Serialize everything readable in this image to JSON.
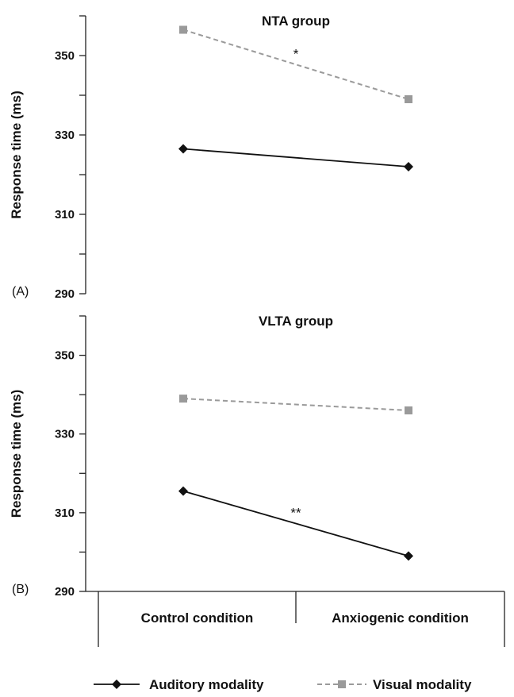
{
  "chart_data": [
    {
      "type": "line",
      "panel_label": "(A)",
      "title": "NTA group",
      "ylabel": "Response time (ms)",
      "categories": [
        "Control condition",
        "Anxiogenic condition"
      ],
      "ylim": [
        290,
        360
      ],
      "yticks": [
        290,
        310,
        330,
        350
      ],
      "series": [
        {
          "name": "Auditory modality",
          "values": [
            326.5,
            322
          ],
          "color": "#111111",
          "marker": "diamond",
          "dash": "solid"
        },
        {
          "name": "Visual modality",
          "values": [
            356.5,
            339
          ],
          "color": "#9a9a9a",
          "marker": "square",
          "dash": "dashed"
        }
      ],
      "annotations": [
        {
          "text": "*",
          "series": "Visual modality"
        }
      ]
    },
    {
      "type": "line",
      "panel_label": "(B)",
      "title": "VLTA group",
      "ylabel": "Response time (ms)",
      "categories": [
        "Control condition",
        "Anxiogenic condition"
      ],
      "ylim": [
        290,
        360
      ],
      "yticks": [
        290,
        310,
        330,
        350
      ],
      "series": [
        {
          "name": "Auditory modality",
          "values": [
            315.5,
            299
          ],
          "color": "#111111",
          "marker": "diamond",
          "dash": "solid"
        },
        {
          "name": "Visual modality",
          "values": [
            339,
            336
          ],
          "color": "#9a9a9a",
          "marker": "square",
          "dash": "dashed"
        }
      ],
      "annotations": [
        {
          "text": "**",
          "series": "Auditory modality"
        }
      ]
    }
  ],
  "x_axis": {
    "categories": [
      "Control condition",
      "Anxiogenic condition"
    ]
  },
  "legend": {
    "items": [
      {
        "label": "Auditory modality",
        "color": "#111111",
        "marker": "diamond",
        "dash": "solid"
      },
      {
        "label": "Visual modality",
        "color": "#9a9a9a",
        "marker": "square",
        "dash": "dashed"
      }
    ]
  }
}
